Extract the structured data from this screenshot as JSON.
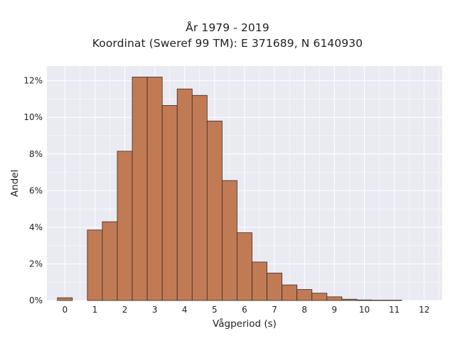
{
  "chart_data": {
    "type": "bar",
    "title": "År 1979 - 2019",
    "subtitle": "Koordinat (Sweref 99 TM): E 371689, N 6140930",
    "xlabel": "Vågperiod (s)",
    "ylabel": "Andel",
    "xlim": [
      -0.6,
      12.6
    ],
    "ylim": [
      0,
      12.8
    ],
    "xticks": [
      0,
      1,
      2,
      3,
      4,
      5,
      6,
      7,
      8,
      9,
      10,
      11,
      12
    ],
    "yticks": [
      0,
      2,
      4,
      6,
      8,
      10,
      12
    ],
    "ytick_suffix": "%",
    "bin_width": 0.5,
    "bin_starts": [
      -0.25,
      0.25,
      0.75,
      1.25,
      1.75,
      2.25,
      2.75,
      3.25,
      3.75,
      4.25,
      4.75,
      5.25,
      5.75,
      6.25,
      6.75,
      7.25,
      7.75,
      8.25,
      8.75,
      9.25,
      9.75,
      10.25,
      10.75,
      11.25,
      11.75
    ],
    "values": [
      0.15,
      0,
      3.85,
      4.3,
      8.15,
      12.2,
      12.2,
      10.65,
      11.55,
      11.2,
      9.8,
      6.55,
      3.7,
      2.1,
      1.5,
      0.85,
      0.6,
      0.4,
      0.2,
      0.07,
      0.03,
      0.02,
      0.02,
      0,
      0
    ],
    "bar_color": "#c07b55",
    "edge_color": "#3a2a22",
    "background_color": "#eaeaf2",
    "grid": true,
    "legend": "none"
  }
}
